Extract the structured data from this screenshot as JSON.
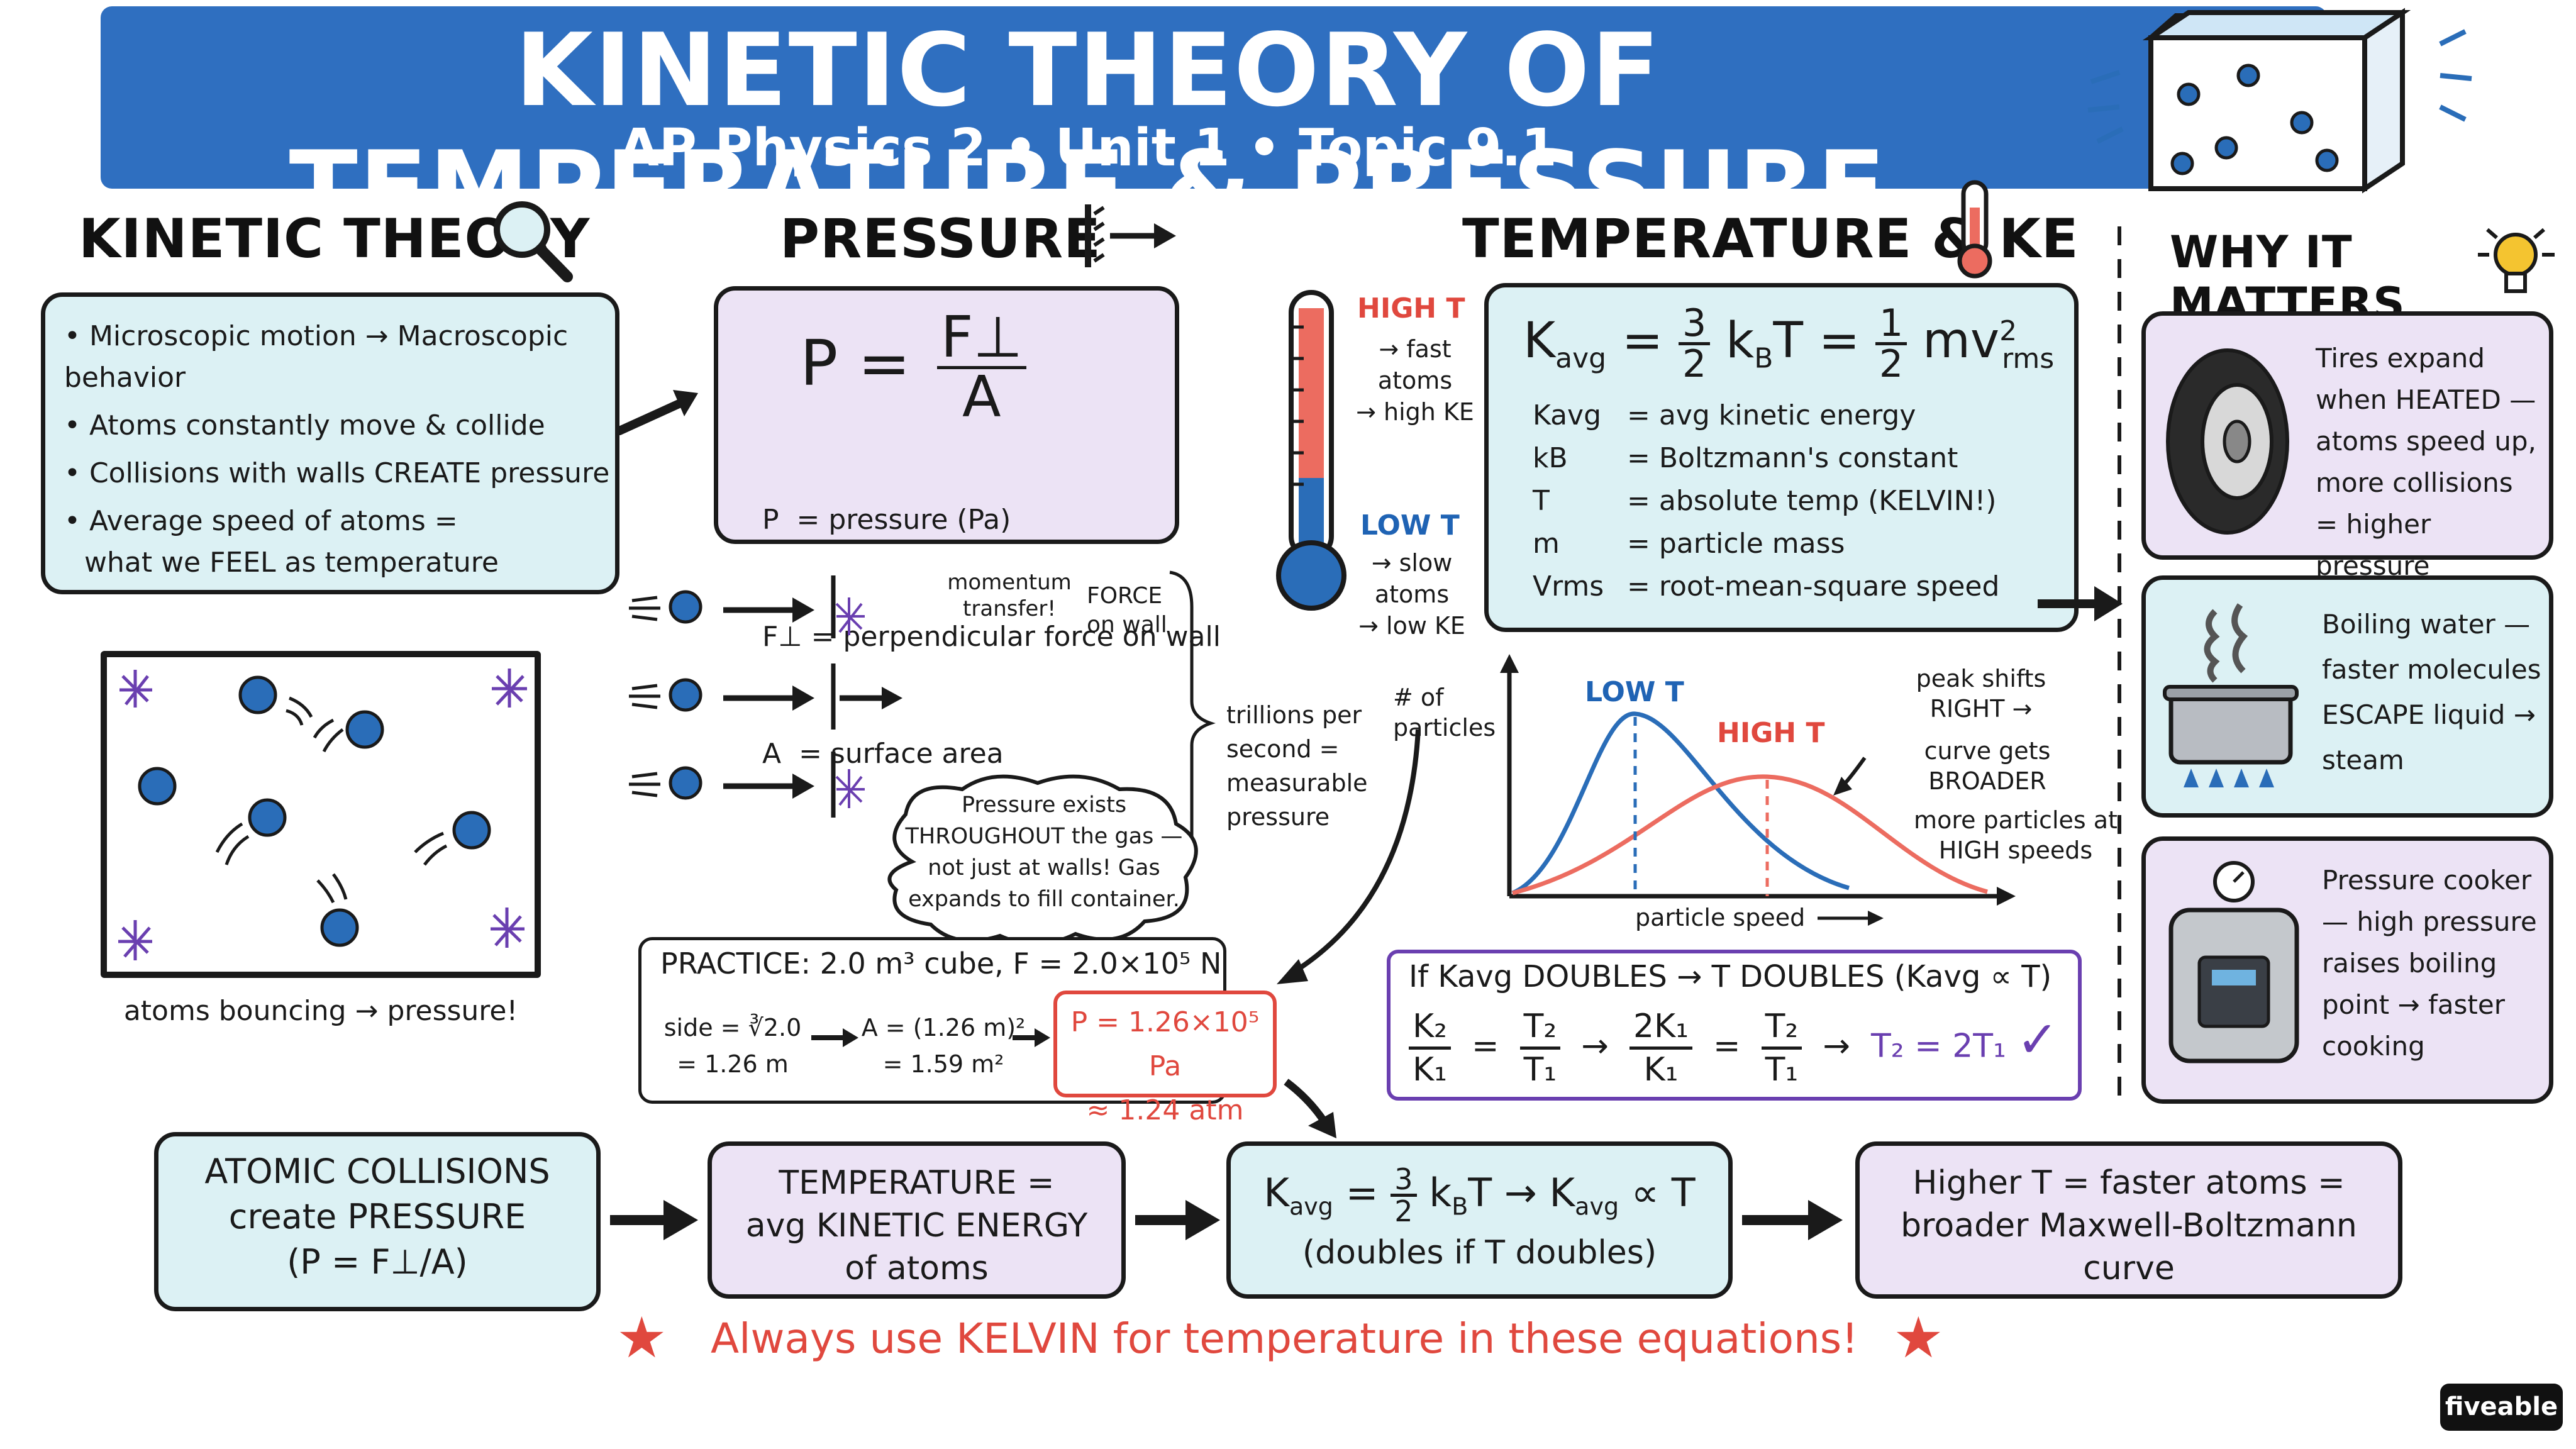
{
  "header": {
    "title": "KINETIC THEORY OF TEMPERATURE & PRESSURE",
    "subtitle": "AP Physics 2 • Unit 1 • Topic 9.1"
  },
  "kinetic_theory": {
    "heading": "KINETIC THEORY",
    "bullets": [
      "• Microscopic motion → Macroscopic behavior",
      "• Atoms constantly move & collide",
      "• Collisions with walls CREATE pressure",
      "• Average speed of atoms =",
      "what we FEEL as temperature"
    ],
    "diagram_caption": "atoms bouncing → pressure!"
  },
  "pressure": {
    "heading": "PRESSURE",
    "formula_lhs": "P =",
    "formula_num": "F⊥",
    "formula_den": "A",
    "defs": [
      "P  = pressure (Pa)",
      "F⊥ = perpendicular force on wall",
      "A  = surface area"
    ],
    "momentum_label": "momentum transfer!",
    "force_label": "FORCE on wall",
    "trillions_label": "trillions per second = measurable pressure",
    "cloud_text": "Pressure exists THROUGHOUT the gas — not just at walls! Gas expands to fill container."
  },
  "practice": {
    "title": "PRACTICE: 2.0 m³ cube, F = 2.0×10⁵ N",
    "side_line1": "side = ∛2.0",
    "side_line2": "= 1.26 m",
    "area_line1": "A = (1.26 m)²",
    "area_line2": "= 1.59 m²",
    "result_line1": "P = 1.26×10⁵ Pa",
    "result_line2": "≈ 1.24 atm"
  },
  "temperature": {
    "heading": "TEMPERATURE & KE",
    "high_t": "HIGH T",
    "high_t_notes": [
      "→ fast",
      "atoms",
      "→ high KE"
    ],
    "low_t": "LOW T",
    "low_t_notes": [
      "→ slow",
      "atoms",
      "→ low KE"
    ],
    "formula": "Kavg = 3/2 kBT = 1/2 mv²rms",
    "defs": [
      {
        "sym": "Kavg",
        "def": "= avg kinetic energy"
      },
      {
        "sym": "kB",
        "def": "= Boltzmann's constant"
      },
      {
        "sym": "T",
        "def": "= absolute temp (KELVIN!)"
      },
      {
        "sym": "m",
        "def": "= particle mass"
      },
      {
        "sym": "Vrms",
        "def": "= root-mean-square speed"
      }
    ]
  },
  "distribution": {
    "y_label": "# of particles",
    "x_label": "particle speed",
    "low_label": "LOW T",
    "high_label": "HIGH T",
    "note1": "peak shifts RIGHT →",
    "note2": "curve gets BROADER",
    "note3": "more particles at HIGH speeds",
    "colors": {
      "low": "#2a6db8",
      "high": "#ec6c60"
    }
  },
  "doubling": {
    "title": "If Kavg DOUBLES → T DOUBLES (Kavg ∝ T)",
    "result": "T₂ = 2T₁"
  },
  "why": {
    "heading": "WHY IT MATTERS",
    "items": [
      "Tires expand when HEATED — atoms speed up, more collisions = higher pressure",
      "Boiling water — faster molecules ESCAPE liquid → steam",
      "Pressure cooker — high pressure raises boiling point → faster cooking"
    ]
  },
  "summary": {
    "box1": [
      "ATOMIC COLLISIONS",
      "create PRESSURE"
    ],
    "box1_formula": "(P = F⊥/A)",
    "box2": [
      "TEMPERATURE =",
      "avg KINETIC ENERGY",
      "of atoms"
    ],
    "box3_line2": "(doubles if T doubles)",
    "box4": [
      "Higher T = faster atoms =",
      "broader Maxwell-Boltzmann",
      "curve"
    ],
    "footer": "Always use KELVIN  for temperature in these equations!"
  },
  "brand": "fiveable"
}
